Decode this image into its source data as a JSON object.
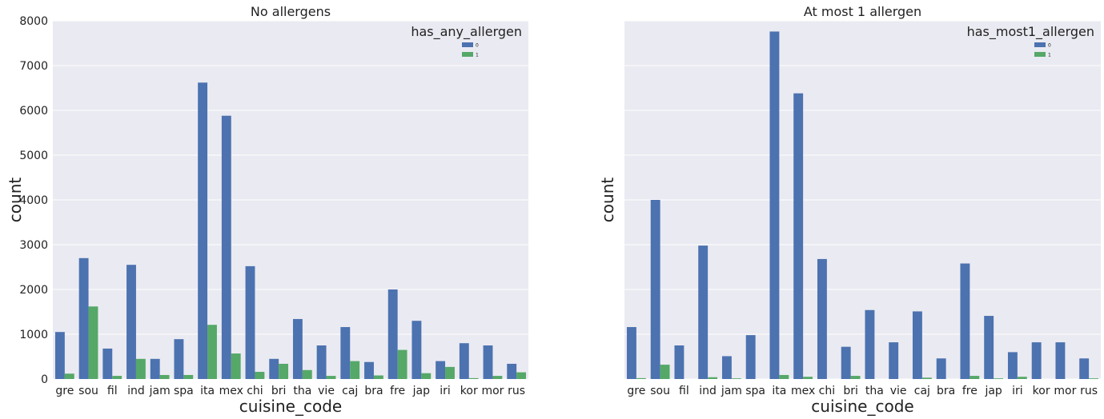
{
  "colors": {
    "series0": "#4c72b0",
    "series1": "#55a868",
    "background": "#eaeaf2",
    "grid": "#ffffff"
  },
  "chart_data": [
    {
      "type": "bar",
      "title": "No allergens",
      "xlabel": "cuisine_code",
      "ylabel": "count",
      "ylim": [
        0,
        8000
      ],
      "yticks": [
        0,
        1000,
        2000,
        3000,
        4000,
        5000,
        6000,
        7000,
        8000
      ],
      "grid": true,
      "legend": {
        "title": "has_any_allergen",
        "placement": "top-right"
      },
      "categories": [
        "gre",
        "sou",
        "fil",
        "ind",
        "jam",
        "spa",
        "ita",
        "mex",
        "chi",
        "bri",
        "tha",
        "vie",
        "caj",
        "bra",
        "fre",
        "jap",
        "iri",
        "kor",
        "mor",
        "rus"
      ],
      "series": [
        {
          "name": "0",
          "values": [
            1050,
            2700,
            680,
            2550,
            450,
            890,
            6620,
            5880,
            2520,
            450,
            1340,
            750,
            1160,
            380,
            2000,
            1300,
            400,
            800,
            750,
            340
          ]
        },
        {
          "name": "1",
          "values": [
            120,
            1620,
            70,
            450,
            90,
            90,
            1210,
            570,
            160,
            340,
            200,
            70,
            400,
            80,
            650,
            130,
            270,
            20,
            70,
            150
          ]
        }
      ]
    },
    {
      "type": "bar",
      "title": "At most 1 allergen",
      "xlabel": "cuisine_code",
      "ylabel": "count",
      "ylim": [
        0,
        8000
      ],
      "yticks": [
        0,
        1000,
        2000,
        3000,
        4000,
        5000,
        6000,
        7000,
        8000
      ],
      "grid": true,
      "legend": {
        "title": "has_most1_allergen",
        "placement": "top-right"
      },
      "categories": [
        "gre",
        "sou",
        "fil",
        "ind",
        "jam",
        "spa",
        "ita",
        "mex",
        "chi",
        "bri",
        "tha",
        "vie",
        "caj",
        "bra",
        "fre",
        "jap",
        "iri",
        "kor",
        "mor",
        "rus"
      ],
      "series": [
        {
          "name": "0",
          "values": [
            1160,
            4000,
            750,
            2980,
            510,
            980,
            7760,
            6380,
            2680,
            720,
            1540,
            820,
            1510,
            460,
            2580,
            1410,
            600,
            820,
            820,
            460
          ]
        },
        {
          "name": "1",
          "values": [
            20,
            320,
            0,
            40,
            15,
            0,
            90,
            50,
            0,
            70,
            0,
            0,
            30,
            0,
            70,
            15,
            50,
            0,
            0,
            15
          ]
        }
      ]
    }
  ]
}
